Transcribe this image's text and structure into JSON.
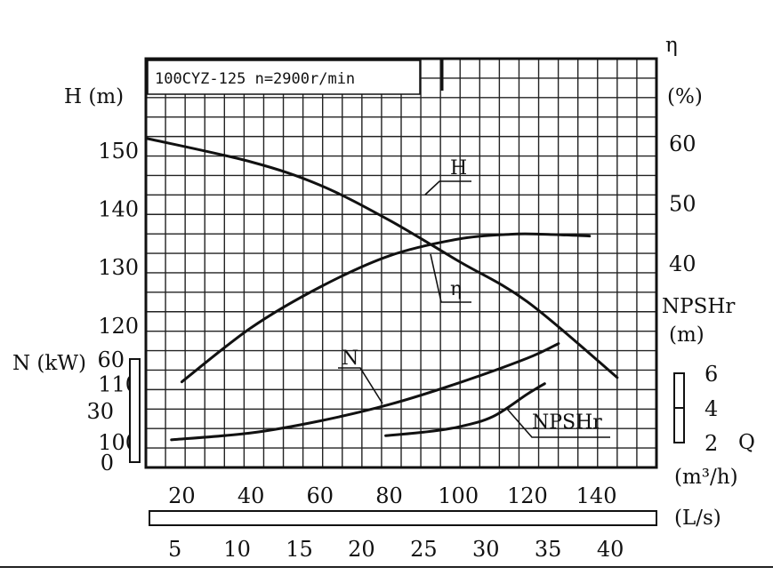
{
  "title": "100CYZ-125  n=2900r/min",
  "chart_data": {
    "type": "line",
    "grid": true,
    "xlabel": "Q (m³/h)",
    "xlim": [
      10,
      148
    ],
    "x_ticks": [
      20,
      40,
      60,
      80,
      100,
      120,
      140
    ],
    "x_unit_q": "Q",
    "x_unit_q_units": "(m³/h)",
    "x2_ticks": [
      5,
      10,
      15,
      20,
      25,
      30,
      35,
      40
    ],
    "x2_unit": "(L/s)",
    "axes": {
      "H": {
        "label": "H (m)",
        "ylim": [
          100,
          150
        ],
        "ticks": [
          100,
          110,
          120,
          130,
          140,
          150
        ]
      },
      "N": {
        "label": "N (kW)",
        "ylim": [
          0,
          60
        ],
        "ticks": [
          0,
          30,
          60
        ]
      },
      "eta": {
        "label": "η",
        "unit": "(%)",
        "ticks": [
          40,
          50,
          60
        ]
      },
      "NPSHr": {
        "label": "NPSHr",
        "unit": "(m)",
        "ticks": [
          2,
          4,
          6
        ]
      }
    },
    "series": [
      {
        "name": "H",
        "axis": "H",
        "x": [
          10,
          40,
          60,
          80,
          100,
          120,
          146
        ],
        "y": [
          152,
          148,
          144,
          138,
          131,
          124,
          111
        ]
      },
      {
        "name": "η",
        "axis": "eta",
        "x": [
          20,
          40,
          60,
          80,
          100,
          115,
          125,
          138
        ],
        "y": [
          20.2,
          29.2,
          36.0,
          41.2,
          44.0,
          44.8,
          44.8,
          44.5
        ]
      },
      {
        "name": "N",
        "axis": "N",
        "x": [
          17,
          40,
          60,
          80,
          100,
          120,
          129
        ],
        "y": [
          13,
          17,
          24,
          33.5,
          46,
          60.5,
          69
        ]
      },
      {
        "name": "NPSHr",
        "axis": "NPSHr",
        "x": [
          79,
          90,
          100,
          110,
          120,
          125
        ],
        "y": [
          2.4,
          2.6,
          2.9,
          3.5,
          4.8,
          5.4
        ]
      }
    ]
  }
}
